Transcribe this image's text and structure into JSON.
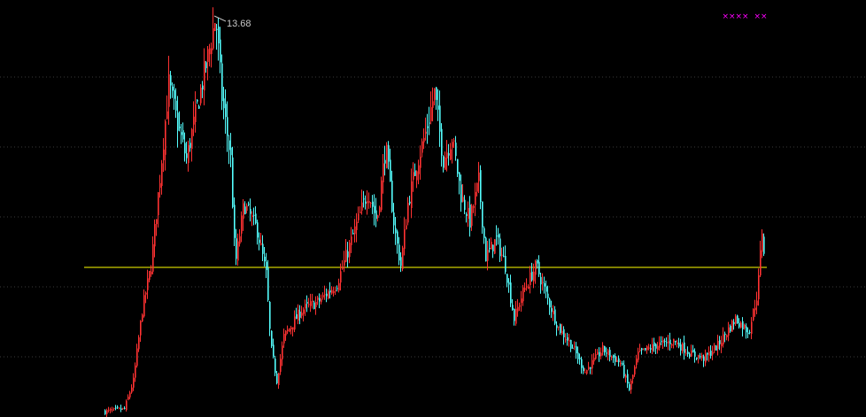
{
  "chart_data": {
    "type": "candlestick",
    "title": "",
    "xlabel": "",
    "ylabel": "",
    "grid": true,
    "max_label": "13.68",
    "reference_line": {
      "value": 6.58,
      "color": "#ffff00"
    },
    "colors": {
      "up": "#ff3232",
      "down": "#54fcfc",
      "background": "#000000",
      "grid": "#3a3a3a",
      "markers": "#ff00ff"
    },
    "markers": [
      "x-marker",
      "x-marker",
      "x-marker"
    ],
    "approx_close_path": {
      "bar": [
        0,
        22,
        32,
        42,
        52,
        62,
        72,
        82,
        92,
        102,
        117,
        125,
        132,
        142,
        147,
        157,
        172,
        182,
        187,
        194,
        202,
        222,
        242,
        262,
        272,
        282,
        297,
        307,
        317,
        327,
        334,
        342,
        352,
        362,
        372,
        382,
        392,
        402,
        412,
        422,
        430,
        442,
        452,
        462,
        472,
        487,
        497,
        512,
        527,
        542,
        562,
        582,
        592,
        602,
        622,
        642,
        662,
        677,
        692,
        712,
        727,
        737,
        742,
        745
      ],
      "close": [
        2.51,
        2.58,
        3.38,
        5.38,
        6.63,
        9.13,
        11.76,
        10.63,
        9.63,
        10.88,
        12.63,
        13.68,
        11.38,
        9.63,
        6.63,
        8.38,
        7.63,
        6.38,
        4.38,
        3.38,
        4.63,
        5.38,
        5.63,
        6.13,
        6.88,
        7.63,
        8.76,
        7.88,
        10.01,
        7.63,
        6.63,
        8.38,
        9.51,
        10.38,
        11.51,
        9.63,
        10.26,
        8.63,
        7.88,
        9.01,
        6.88,
        7.38,
        6.63,
        5.13,
        5.88,
        6.63,
        5.88,
        4.88,
        4.38,
        3.63,
        4.26,
        3.88,
        3.13,
        4.13,
        4.38,
        4.51,
        4.13,
        4.01,
        4.38,
        5.13,
        4.76,
        5.88,
        7.63,
        6.76
      ]
    }
  }
}
